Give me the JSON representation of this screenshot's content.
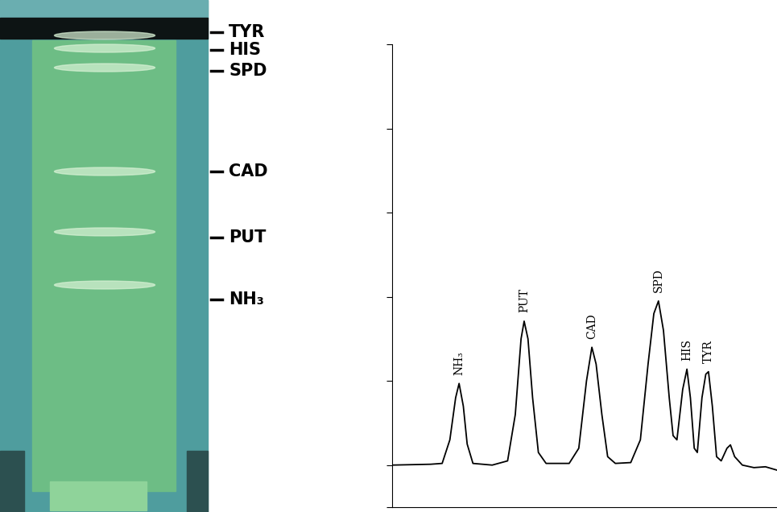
{
  "plate": {
    "labels": [
      "TYR",
      "HIS",
      "SPD",
      "CAD",
      "PUT",
      "NH₃"
    ]
  },
  "chart_data": {
    "type": "line",
    "color": "#000000",
    "tick_labels": false,
    "x": [
      0,
      10,
      13,
      15,
      16.5,
      17.4,
      18.5,
      19.5,
      21,
      26,
      30,
      32,
      33.5,
      34.3,
      35.3,
      36.5,
      38,
      40,
      46,
      48.5,
      50.5,
      51.9,
      53,
      54.5,
      56,
      58,
      62,
      64.5,
      66.5,
      68,
      69.2,
      70.5,
      72,
      73,
      74,
      75.5,
      76.6,
      77.5,
      78.5,
      79.3,
      80.5,
      81.5,
      82.2,
      83.2,
      84.3,
      85.5,
      87,
      87.9,
      89,
      91,
      94,
      97,
      100
    ],
    "values": [
      0,
      0.01,
      0.02,
      0.3,
      0.8,
      0.97,
      0.7,
      0.25,
      0.02,
      0.0,
      0.05,
      0.6,
      1.5,
      1.71,
      1.5,
      0.8,
      0.15,
      0.02,
      0.02,
      0.2,
      1.0,
      1.4,
      1.2,
      0.6,
      0.1,
      0.02,
      0.03,
      0.3,
      1.2,
      1.8,
      1.95,
      1.6,
      0.8,
      0.35,
      0.3,
      0.9,
      1.14,
      0.8,
      0.2,
      0.15,
      0.8,
      1.08,
      1.11,
      0.7,
      0.1,
      0.05,
      0.2,
      0.24,
      0.1,
      0.0,
      -0.03,
      -0.02,
      -0.06
    ],
    "xlim": [
      0,
      100
    ],
    "ylim": [
      -0.5,
      5
    ],
    "xticks": [],
    "yticks": [
      -0.5,
      0,
      1,
      2,
      3,
      4,
      5
    ],
    "annotations": [
      {
        "text": "NH₃",
        "x": 17.4,
        "y": 0.97
      },
      {
        "text": "PUT",
        "x": 34.3,
        "y": 1.71
      },
      {
        "text": "CAD",
        "x": 51.9,
        "y": 1.4
      },
      {
        "text": "SPD",
        "x": 69.2,
        "y": 1.95
      },
      {
        "text": "HIS",
        "x": 76.6,
        "y": 1.14
      },
      {
        "text": "TYR",
        "x": 82.2,
        "y": 1.11
      }
    ]
  }
}
